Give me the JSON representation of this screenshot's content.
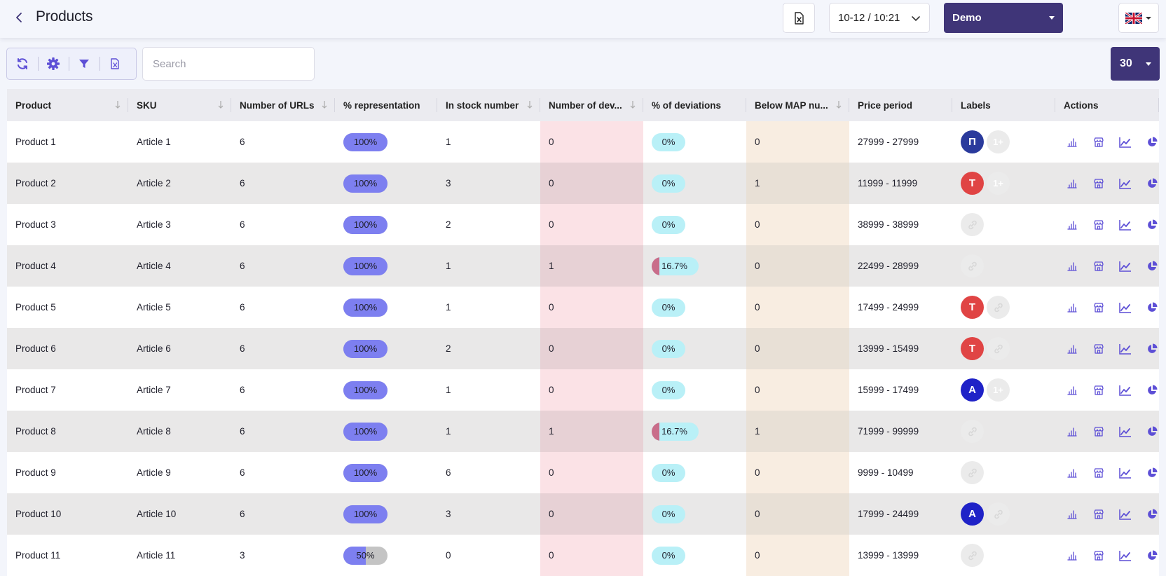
{
  "header": {
    "title": "Products",
    "date_value": "10-12 / 10:21",
    "account": "Demo",
    "language": "English (UK flag)",
    "icons": {
      "back": "chevron-left-icon",
      "excel": "excel-file-icon",
      "date": "chevron-down-icon",
      "flag": "uk-flag-icon"
    }
  },
  "toolbar": {
    "icons": [
      "refresh-icon",
      "gear-icon",
      "filter-icon",
      "excel-file-icon"
    ],
    "search_placeholder": "Search",
    "per_page": "30"
  },
  "colors": {
    "accent": "#3f3578",
    "representation": "#7d7ff0",
    "deviation_fill": "#c96d8a",
    "deviation_pill": "#b9f0f7",
    "deviation_column": "#fbe2e6",
    "map_column": "#f8ede1",
    "label_p": "#2a3a9c",
    "label_t": "#e04444",
    "label_a": "#1f22c7"
  },
  "columns": [
    "Product",
    "SKU",
    "Number of URLs",
    "% representation",
    "In stock number",
    "Number of dev...",
    "% of deviations",
    "Below MAP nu...",
    "Price period",
    "Labels",
    "Actions"
  ],
  "rows": [
    {
      "product": "Product 1",
      "sku": "Article 1",
      "urls": "6",
      "rep": "100%",
      "rep_value": 1.0,
      "stock": "1",
      "dev": "0",
      "dev_pct": "0%",
      "dev_value": 0,
      "map": "0",
      "price": "27999 - 27999",
      "labels": [
        {
          "text": "П",
          "color": "#2a3a9c"
        },
        {
          "text": "1+",
          "color": "ghost"
        }
      ]
    },
    {
      "product": "Product 2",
      "sku": "Article 2",
      "urls": "6",
      "rep": "100%",
      "rep_value": 1.0,
      "stock": "3",
      "dev": "0",
      "dev_pct": "0%",
      "dev_value": 0,
      "map": "1",
      "price": "11999 - 11999",
      "labels": [
        {
          "text": "T",
          "color": "#e04444"
        },
        {
          "text": "1+",
          "color": "ghost"
        }
      ]
    },
    {
      "product": "Product 3",
      "sku": "Article 3",
      "urls": "6",
      "rep": "100%",
      "rep_value": 1.0,
      "stock": "2",
      "dev": "0",
      "dev_pct": "0%",
      "dev_value": 0,
      "map": "0",
      "price": "38999 - 38999",
      "labels": [
        {
          "text": "",
          "color": "ghost"
        }
      ]
    },
    {
      "product": "Product 4",
      "sku": "Article 4",
      "urls": "6",
      "rep": "100%",
      "rep_value": 1.0,
      "stock": "1",
      "dev": "1",
      "dev_pct": "16.7%",
      "dev_value": 0.167,
      "map": "0",
      "price": "22499 - 28999",
      "labels": [
        {
          "text": "",
          "color": "ghost"
        }
      ]
    },
    {
      "product": "Product 5",
      "sku": "Article 5",
      "urls": "6",
      "rep": "100%",
      "rep_value": 1.0,
      "stock": "1",
      "dev": "0",
      "dev_pct": "0%",
      "dev_value": 0,
      "map": "0",
      "price": "17499 - 24999",
      "labels": [
        {
          "text": "T",
          "color": "#e04444"
        },
        {
          "text": "",
          "color": "ghost"
        }
      ]
    },
    {
      "product": "Product 6",
      "sku": "Article 6",
      "urls": "6",
      "rep": "100%",
      "rep_value": 1.0,
      "stock": "2",
      "dev": "0",
      "dev_pct": "0%",
      "dev_value": 0,
      "map": "0",
      "price": "13999 - 15499",
      "labels": [
        {
          "text": "T",
          "color": "#e04444"
        },
        {
          "text": "",
          "color": "ghost"
        }
      ]
    },
    {
      "product": "Product 7",
      "sku": "Article 7",
      "urls": "6",
      "rep": "100%",
      "rep_value": 1.0,
      "stock": "1",
      "dev": "0",
      "dev_pct": "0%",
      "dev_value": 0,
      "map": "0",
      "price": "15999 - 17499",
      "labels": [
        {
          "text": "A",
          "color": "#1f22c7"
        },
        {
          "text": "1+",
          "color": "ghost"
        }
      ]
    },
    {
      "product": "Product 8",
      "sku": "Article 8",
      "urls": "6",
      "rep": "100%",
      "rep_value": 1.0,
      "stock": "1",
      "dev": "1",
      "dev_pct": "16.7%",
      "dev_value": 0.167,
      "map": "1",
      "price": "71999 - 99999",
      "labels": [
        {
          "text": "",
          "color": "ghost"
        }
      ]
    },
    {
      "product": "Product 9",
      "sku": "Article 9",
      "urls": "6",
      "rep": "100%",
      "rep_value": 1.0,
      "stock": "6",
      "dev": "0",
      "dev_pct": "0%",
      "dev_value": 0,
      "map": "0",
      "price": "9999 - 10499",
      "labels": [
        {
          "text": "",
          "color": "ghost"
        }
      ]
    },
    {
      "product": "Product 10",
      "sku": "Article 10",
      "urls": "6",
      "rep": "100%",
      "rep_value": 1.0,
      "stock": "3",
      "dev": "0",
      "dev_pct": "0%",
      "dev_value": 0,
      "map": "0",
      "price": "17999 - 24499",
      "labels": [
        {
          "text": "A",
          "color": "#1f22c7"
        },
        {
          "text": "",
          "color": "ghost"
        }
      ]
    },
    {
      "product": "Product 11",
      "sku": "Article 11",
      "urls": "3",
      "rep": "50%",
      "rep_value": 0.5,
      "stock": "0",
      "dev": "0",
      "dev_pct": "0%",
      "dev_value": 0,
      "map": "0",
      "price": "13999 - 13999",
      "labels": [
        {
          "text": "",
          "color": "ghost"
        }
      ]
    }
  ],
  "row_actions": [
    "bar-chart-icon",
    "store-icon",
    "line-chart-icon",
    "pie-chart-icon"
  ]
}
